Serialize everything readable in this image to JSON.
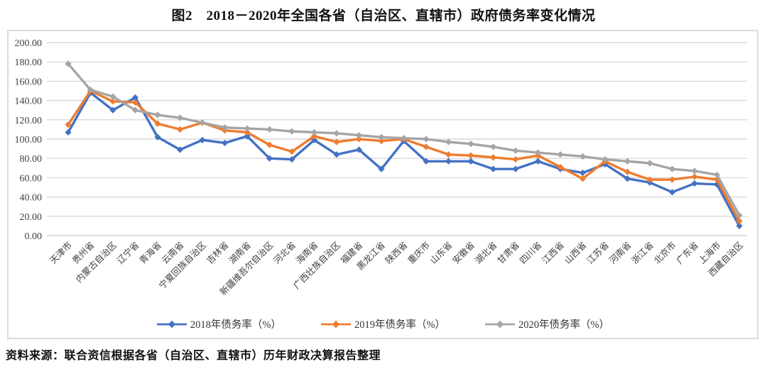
{
  "page": {
    "title": "图2　2018－2020年全国各省（自治区、直辖市）政府债务率变化情况",
    "source_note": "资料来源：联合资信根据各省（自治区、直辖市）历年财政决算报告整理"
  },
  "chart_data": {
    "type": "line",
    "title": "图2　2018－2020年全国各省（自治区、直辖市）政府债务率变化情况",
    "categories": [
      "天津市",
      "贵州省",
      "内蒙古自治区",
      "辽宁省",
      "青海省",
      "云南省",
      "宁夏回族自治区",
      "吉林省",
      "湖南省",
      "新疆维吾尔自治区",
      "河北省",
      "海南省",
      "广西壮族自治区",
      "福建省",
      "黑龙江省",
      "陕西省",
      "重庆市",
      "山东省",
      "安徽省",
      "湖北省",
      "甘肃省",
      "四川省",
      "江西省",
      "山西省",
      "江苏省",
      "河南省",
      "浙江省",
      "北京市",
      "广东省",
      "上海市",
      "西藏自治区"
    ],
    "series": [
      {
        "name": "2018年债务率（%）",
        "color": "#4472C4",
        "values": [
          107,
          148,
          130,
          143,
          102,
          89,
          99,
          96,
          103,
          80,
          79,
          99,
          84,
          89,
          69,
          98,
          77,
          77,
          77,
          69,
          69,
          77,
          69,
          65,
          74,
          59,
          55,
          45,
          54,
          53,
          10
        ]
      },
      {
        "name": "2019年债务率（%）",
        "color": "#ED7D31",
        "values": [
          115,
          150,
          139,
          138,
          116,
          110,
          117,
          109,
          107,
          94,
          87,
          103,
          97,
          100,
          98,
          100,
          92,
          84,
          83,
          81,
          79,
          83,
          71,
          59,
          77,
          66,
          58,
          58,
          61,
          58,
          15
        ]
      },
      {
        "name": "2020年债务率（%）",
        "color": "#A5A5A5",
        "values": [
          178,
          151,
          144,
          130,
          125,
          122,
          117,
          112,
          111,
          110,
          108,
          107,
          106,
          104,
          102,
          101,
          100,
          97,
          95,
          92,
          88,
          86,
          84,
          82,
          79,
          77,
          75,
          69,
          67,
          63,
          21
        ]
      }
    ],
    "xlabel": "",
    "ylabel": "",
    "ylim": [
      0,
      200
    ],
    "ytick_step": 20,
    "ytick_format": "two-decimals",
    "grid": "horizontal",
    "gridline_color": "#D9D9D9",
    "axis_text_color": "#404040",
    "legend_position": "bottom",
    "marker": "diamond"
  }
}
